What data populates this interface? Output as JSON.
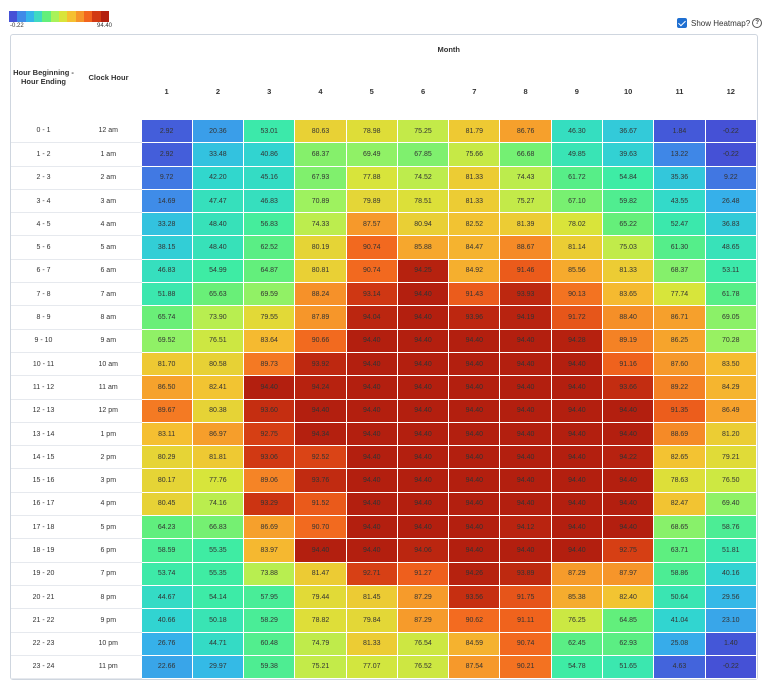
{
  "legend": {
    "min_label": "-0.22",
    "max_label": "94.40",
    "colors": [
      "#4551d6",
      "#3f8ae8",
      "#35b5ea",
      "#3ed9c3",
      "#63ef7b",
      "#a9f25a",
      "#d9e43a",
      "#f5c031",
      "#f6952a",
      "#f2651e",
      "#d23a13",
      "#b31f0f"
    ]
  },
  "toggle": {
    "label": "Show Heatmap?",
    "checked": true
  },
  "headers": {
    "group": "Month",
    "hour_beginning": "Hour Beginning - Hour Ending",
    "clock_hour": "Clock Hour"
  },
  "chart_data": {
    "type": "heatmap",
    "x": [
      "1",
      "2",
      "3",
      "4",
      "5",
      "6",
      "7",
      "8",
      "9",
      "10",
      "11",
      "12"
    ],
    "hour_ranges": [
      "0 - 1",
      "1 - 2",
      "2 - 3",
      "3 - 4",
      "4 - 5",
      "5 - 6",
      "6 - 7",
      "7 - 8",
      "8 - 9",
      "9 - 10",
      "10 - 11",
      "11 - 12",
      "12 - 13",
      "13 - 14",
      "14 - 15",
      "15 - 16",
      "16 - 17",
      "17 - 18",
      "18 - 19",
      "19 - 20",
      "20 - 21",
      "21 - 22",
      "22 - 23",
      "23 - 24"
    ],
    "clock_hours": [
      "12 am",
      "1 am",
      "2 am",
      "3 am",
      "4 am",
      "5 am",
      "6 am",
      "7 am",
      "8 am",
      "9 am",
      "10 am",
      "11 am",
      "12 pm",
      "1 pm",
      "2 pm",
      "3 pm",
      "4 pm",
      "5 pm",
      "6 pm",
      "7 pm",
      "8 pm",
      "9 pm",
      "10 pm",
      "11 pm"
    ],
    "values": [
      [
        2.92,
        20.36,
        53.01,
        80.63,
        78.98,
        75.25,
        81.79,
        86.76,
        46.3,
        36.67,
        1.84,
        -0.22
      ],
      [
        2.92,
        33.48,
        40.86,
        68.37,
        69.49,
        67.85,
        75.66,
        66.68,
        49.85,
        39.63,
        13.22,
        -0.22
      ],
      [
        9.72,
        42.2,
        45.16,
        67.93,
        77.88,
        74.52,
        81.33,
        74.43,
        61.72,
        54.84,
        35.36,
        9.22
      ],
      [
        14.69,
        47.47,
        46.83,
        70.89,
        79.89,
        78.51,
        81.33,
        75.27,
        67.1,
        59.82,
        43.55,
        26.48
      ],
      [
        33.28,
        48.4,
        56.83,
        74.33,
        87.57,
        80.94,
        82.52,
        81.39,
        78.02,
        65.22,
        52.47,
        36.83
      ],
      [
        38.15,
        48.4,
        62.52,
        80.19,
        90.74,
        85.88,
        84.47,
        88.67,
        81.14,
        75.03,
        61.3,
        48.65
      ],
      [
        46.83,
        54.99,
        64.87,
        80.81,
        90.74,
        94.25,
        84.92,
        91.46,
        85.56,
        81.33,
        68.37,
        53.11
      ],
      [
        51.88,
        65.63,
        69.59,
        88.24,
        93.14,
        94.4,
        91.43,
        93.93,
        90.13,
        83.65,
        77.74,
        61.78
      ],
      [
        65.74,
        73.9,
        79.55,
        87.89,
        94.04,
        94.4,
        93.96,
        94.19,
        91.72,
        88.4,
        86.71,
        69.05
      ],
      [
        69.52,
        76.51,
        83.64,
        90.66,
        94.4,
        94.4,
        94.4,
        94.4,
        94.28,
        89.19,
        86.25,
        70.28
      ],
      [
        81.7,
        80.58,
        89.73,
        93.92,
        94.4,
        94.4,
        94.4,
        94.4,
        94.4,
        91.16,
        87.6,
        83.5
      ],
      [
        86.5,
        82.41,
        94.4,
        94.24,
        94.4,
        94.4,
        94.4,
        94.4,
        94.4,
        93.66,
        89.22,
        84.29
      ],
      [
        89.67,
        80.38,
        93.6,
        94.4,
        94.4,
        94.4,
        94.4,
        94.4,
        94.4,
        94.4,
        91.35,
        86.49
      ],
      [
        83.11,
        86.97,
        92.75,
        94.34,
        94.4,
        94.4,
        94.4,
        94.4,
        94.4,
        94.4,
        88.69,
        81.2
      ],
      [
        80.29,
        81.81,
        93.06,
        92.52,
        94.4,
        94.4,
        94.4,
        94.4,
        94.4,
        94.22,
        82.65,
        79.21
      ],
      [
        80.17,
        77.76,
        89.06,
        93.76,
        94.4,
        94.4,
        94.4,
        94.4,
        94.4,
        94.4,
        78.63,
        76.5
      ],
      [
        80.45,
        74.16,
        93.29,
        91.52,
        94.4,
        94.4,
        94.4,
        94.4,
        94.4,
        94.4,
        82.47,
        69.4
      ],
      [
        64.23,
        66.83,
        86.69,
        90.7,
        94.4,
        94.4,
        94.4,
        94.12,
        94.4,
        94.4,
        68.65,
        58.76
      ],
      [
        58.59,
        55.35,
        83.97,
        94.4,
        94.4,
        94.06,
        94.4,
        94.4,
        94.4,
        92.75,
        63.71,
        51.81
      ],
      [
        53.74,
        55.35,
        73.88,
        81.47,
        92.71,
        91.27,
        94.26,
        93.89,
        87.29,
        87.97,
        58.86,
        40.16
      ],
      [
        44.67,
        54.14,
        57.95,
        79.44,
        81.45,
        87.29,
        93.56,
        91.75,
        85.38,
        82.4,
        50.64,
        29.56
      ],
      [
        40.66,
        50.18,
        58.29,
        78.82,
        79.84,
        87.29,
        90.62,
        91.11,
        76.25,
        64.85,
        41.04,
        23.1
      ],
      [
        26.76,
        44.71,
        60.48,
        74.79,
        81.33,
        76.54,
        84.59,
        90.74,
        62.45,
        62.93,
        25.08,
        1.4
      ],
      [
        22.66,
        29.97,
        59.38,
        75.21,
        77.07,
        76.52,
        87.54,
        90.21,
        54.78,
        51.65,
        4.63,
        -0.22
      ]
    ],
    "value_range": [
      -0.22,
      94.4
    ]
  }
}
